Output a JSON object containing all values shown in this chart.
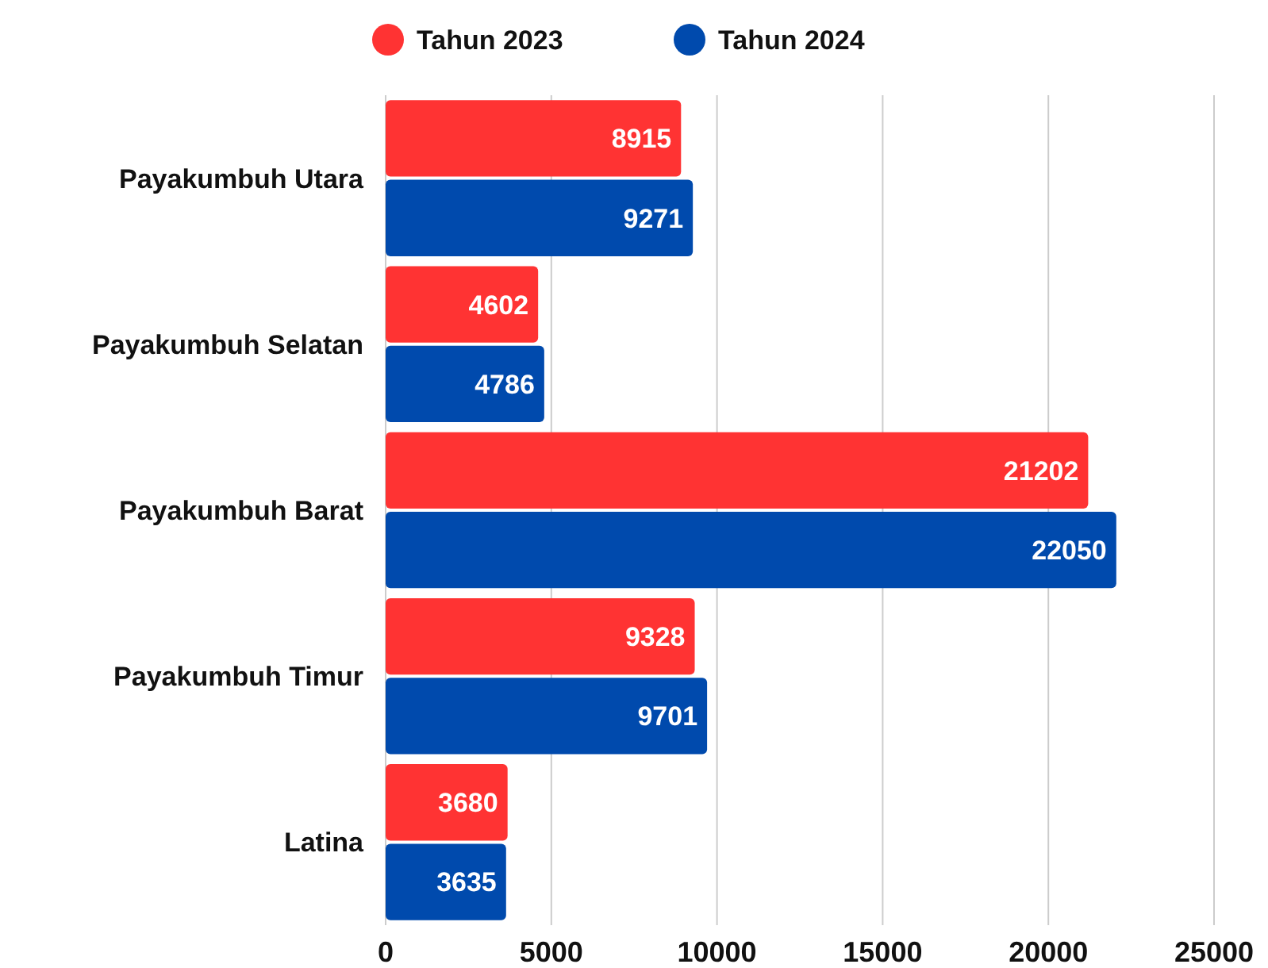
{
  "chart_data": {
    "type": "bar",
    "orientation": "horizontal",
    "categories": [
      "Payakumbuh Utara",
      "Payakumbuh Selatan",
      "Payakumbuh Barat",
      "Payakumbuh Timur",
      "Latina"
    ],
    "series": [
      {
        "name": "Tahun 2023",
        "color": "#ff3333",
        "values": [
          8915,
          4602,
          21202,
          9328,
          3680
        ]
      },
      {
        "name": "Tahun 2024",
        "color": "#004aad",
        "values": [
          9271,
          4786,
          22050,
          9701,
          3635
        ]
      }
    ],
    "xlim": [
      0,
      25000
    ],
    "xticks": [
      0,
      5000,
      10000,
      15000,
      20000,
      25000
    ],
    "grid": "x",
    "legend": "top",
    "data_labels": true
  }
}
